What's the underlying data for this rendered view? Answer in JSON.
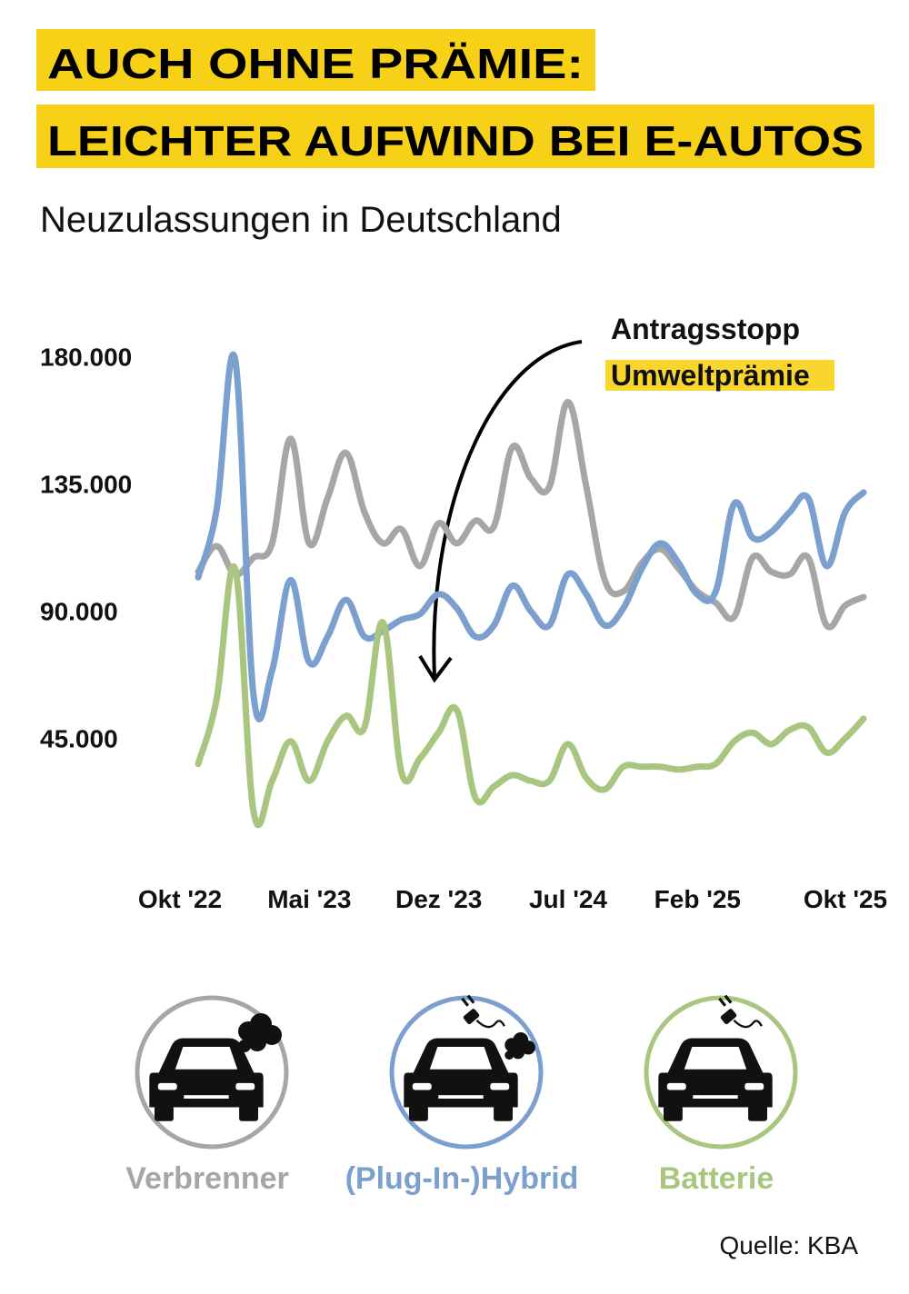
{
  "chart_data": {
    "type": "line",
    "title": [
      "AUCH OHNE PRÄMIE:",
      "LEICHTER AUFWIND BEI E-AUTOS"
    ],
    "subtitle": "Neuzulassungen in Deutschland",
    "annotation": [
      "Antragsstopp",
      "Umweltprämie"
    ],
    "source": "Quelle: KBA",
    "categories": [
      "Okt '22",
      null,
      null,
      null,
      null,
      null,
      null,
      "Mai '23",
      null,
      null,
      null,
      null,
      null,
      null,
      "Dez '23",
      null,
      null,
      null,
      null,
      null,
      null,
      "Jul '24",
      null,
      null,
      null,
      null,
      null,
      null,
      "Feb '25",
      null,
      null,
      null,
      null,
      null,
      null,
      null,
      "Okt '25"
    ],
    "ylim": [
      15000,
      185000
    ],
    "yticks": [
      {
        "value": 45000,
        "label": "45.000"
      },
      {
        "value": 90000,
        "label": "90.000"
      },
      {
        "value": 135000,
        "label": "135.000"
      },
      {
        "value": 180000,
        "label": "180.000"
      }
    ],
    "grid": false,
    "series": [
      {
        "name": "Verbrenner",
        "color": "#a6a6a6",
        "values": [
          104000,
          113000,
          103000,
          109000,
          114000,
          151000,
          114000,
          130000,
          146000,
          125000,
          114000,
          119000,
          106000,
          121000,
          114000,
          122000,
          120000,
          148000,
          137000,
          134000,
          164000,
          134000,
          101000,
          97000,
          107000,
          112000,
          105000,
          97000,
          93000,
          88000,
          109000,
          104000,
          103000,
          109000,
          85000,
          92000,
          95000
        ]
      },
      {
        "name": "(Plug-In-)Hybrid",
        "color": "#7b9fcf",
        "values": [
          102000,
          126000,
          179000,
          60000,
          69000,
          101000,
          72000,
          81000,
          94000,
          81000,
          83000,
          87000,
          89000,
          96000,
          91000,
          81000,
          85000,
          99000,
          90000,
          85000,
          103000,
          96000,
          85000,
          91000,
          105000,
          114000,
          107000,
          96000,
          97000,
          128000,
          116000,
          118000,
          125000,
          130000,
          106000,
          125000,
          132000
        ]
      },
      {
        "name": "Batterie",
        "color": "#a8c67f",
        "values": [
          36000,
          59000,
          105000,
          19000,
          30000,
          44000,
          30000,
          44000,
          53000,
          49000,
          86000,
          33000,
          38000,
          47000,
          55000,
          24000,
          28000,
          32000,
          30000,
          30000,
          43000,
          31000,
          27000,
          35000,
          35000,
          35000,
          34000,
          35000,
          36000,
          44000,
          47000,
          43000,
          48000,
          49000,
          40000,
          45000,
          52000
        ]
      }
    ]
  }
}
